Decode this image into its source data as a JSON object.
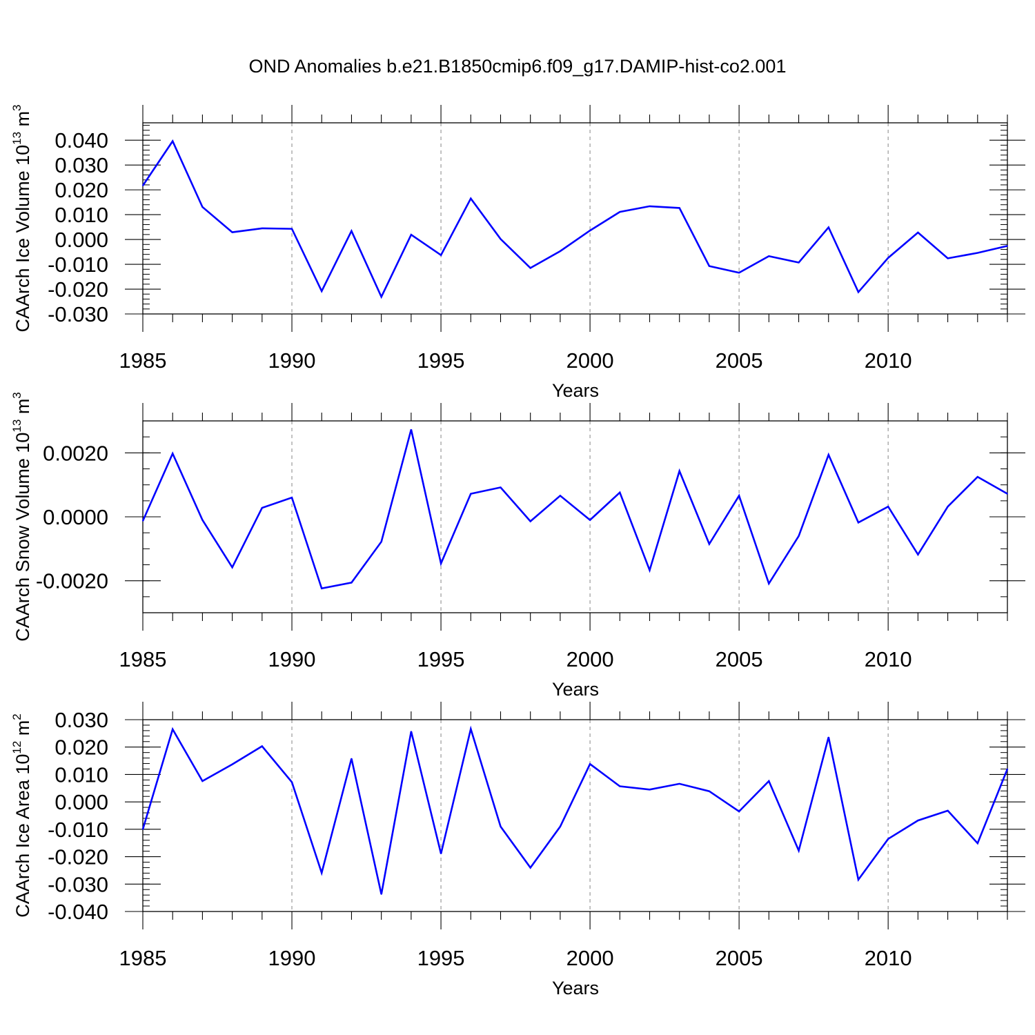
{
  "title": "OND Anomalies b.e21.B1850cmip6.f09_g17.DAMIP-hist-co2.001",
  "chart_data": [
    {
      "type": "line",
      "title": "OND Anomalies b.e21.B1850cmip6.f09_g17.DAMIP-hist-co2.001",
      "xlabel": "Years",
      "ylabel": "CAArch Ice Volume 10",
      "ylabel_exp": "13",
      "ylabel_unit": " m",
      "ylabel_unit_exp": "3",
      "xlim": [
        1985,
        2014
      ],
      "ylim": [
        -0.03,
        0.047
      ],
      "xticks": [
        1985,
        1990,
        1995,
        2000,
        2005,
        2010
      ],
      "xtick_labels": [
        "1985",
        "1990",
        "1995",
        "2000",
        "2005",
        "2010"
      ],
      "yticks": [
        -0.03,
        -0.02,
        -0.01,
        0.0,
        0.01,
        0.02,
        0.03,
        0.04
      ],
      "ytick_labels": [
        "-0.030",
        "-0.020",
        "-0.010",
        "0.000",
        "0.010",
        "0.020",
        "0.030",
        "0.040"
      ],
      "grid": "vertical dashed at major x ticks",
      "line_color": "#0000ff",
      "x": [
        1985,
        1986,
        1987,
        1988,
        1989,
        1990,
        1991,
        1992,
        1993,
        1994,
        1995,
        1996,
        1997,
        1998,
        1999,
        2000,
        2001,
        2002,
        2003,
        2004,
        2005,
        2006,
        2007,
        2008,
        2009,
        2010,
        2011,
        2012,
        2013,
        2014
      ],
      "values": [
        0.0217,
        0.0396,
        0.0131,
        0.0029,
        0.0045,
        0.0043,
        -0.0208,
        0.0034,
        -0.0231,
        0.0019,
        -0.0063,
        0.0165,
        0.0002,
        -0.0115,
        -0.0047,
        0.0036,
        0.0111,
        0.0134,
        0.0127,
        -0.0107,
        -0.0134,
        -0.0067,
        -0.0093,
        0.0049,
        -0.0212,
        -0.0074,
        0.0028,
        -0.0076,
        -0.0054,
        -0.0026
      ]
    },
    {
      "type": "line",
      "xlabel": "Years",
      "ylabel": "CAArch Snow Volume 10",
      "ylabel_exp": "13",
      "ylabel_unit": " m",
      "ylabel_unit_exp": "3",
      "xlim": [
        1985,
        2014
      ],
      "ylim": [
        -0.003,
        0.003
      ],
      "xticks": [
        1985,
        1990,
        1995,
        2000,
        2005,
        2010
      ],
      "xtick_labels": [
        "1985",
        "1990",
        "1995",
        "2000",
        "2005",
        "2010"
      ],
      "yticks": [
        -0.002,
        0.0,
        0.002
      ],
      "ytick_labels": [
        "-0.0020",
        "0.0000",
        "0.0020"
      ],
      "grid": "vertical dashed at major x ticks",
      "line_color": "#0000ff",
      "x": [
        1985,
        1986,
        1987,
        1988,
        1989,
        1990,
        1991,
        1992,
        1993,
        1994,
        1995,
        1996,
        1997,
        1998,
        1999,
        2000,
        2001,
        2002,
        2003,
        2004,
        2005,
        2006,
        2007,
        2008,
        2009,
        2010,
        2011,
        2012,
        2013,
        2014
      ],
      "values": [
        -0.00013,
        0.00198,
        -0.0001,
        -0.00158,
        0.00028,
        0.0006,
        -0.00224,
        -0.00206,
        -0.00078,
        0.00273,
        -0.00146,
        0.00072,
        0.00092,
        -0.00014,
        0.00066,
        -0.0001,
        0.00076,
        -0.00167,
        0.00143,
        -0.00085,
        0.00066,
        -0.00209,
        -0.0006,
        0.00194,
        -0.00018,
        0.00032,
        -0.00118,
        0.00032,
        0.00125,
        0.00072
      ]
    },
    {
      "type": "line",
      "xlabel": "Years",
      "ylabel": "CAArch Ice Area 10",
      "ylabel_exp": "12",
      "ylabel_unit": " m",
      "ylabel_unit_exp": "2",
      "xlim": [
        1985,
        2014
      ],
      "ylim": [
        -0.04,
        0.03
      ],
      "xticks": [
        1985,
        1990,
        1995,
        2000,
        2005,
        2010
      ],
      "xtick_labels": [
        "1985",
        "1990",
        "1995",
        "2000",
        "2005",
        "2010"
      ],
      "yticks": [
        -0.04,
        -0.03,
        -0.02,
        -0.01,
        0.0,
        0.01,
        0.02,
        0.03
      ],
      "ytick_labels": [
        "-0.040",
        "-0.030",
        "-0.020",
        "-0.010",
        "0.000",
        "0.010",
        "0.020",
        "0.030"
      ],
      "grid": "vertical dashed at major x ticks",
      "line_color": "#0000ff",
      "x": [
        1985,
        1986,
        1987,
        1988,
        1989,
        1990,
        1991,
        1992,
        1993,
        1994,
        1995,
        1996,
        1997,
        1998,
        1999,
        2000,
        2001,
        2002,
        2003,
        2004,
        2005,
        2006,
        2007,
        2008,
        2009,
        2010,
        2011,
        2012,
        2013,
        2014
      ],
      "values": [
        -0.01,
        0.0265,
        0.0076,
        0.0137,
        0.0203,
        0.0072,
        -0.0259,
        0.0158,
        -0.0337,
        0.0257,
        -0.0189,
        0.0266,
        -0.009,
        -0.024,
        -0.009,
        0.0138,
        0.0057,
        0.0045,
        0.0066,
        0.0039,
        -0.0035,
        0.0076,
        -0.0178,
        0.0236,
        -0.0284,
        -0.0135,
        -0.0068,
        -0.0032,
        -0.0151,
        0.012
      ]
    }
  ]
}
